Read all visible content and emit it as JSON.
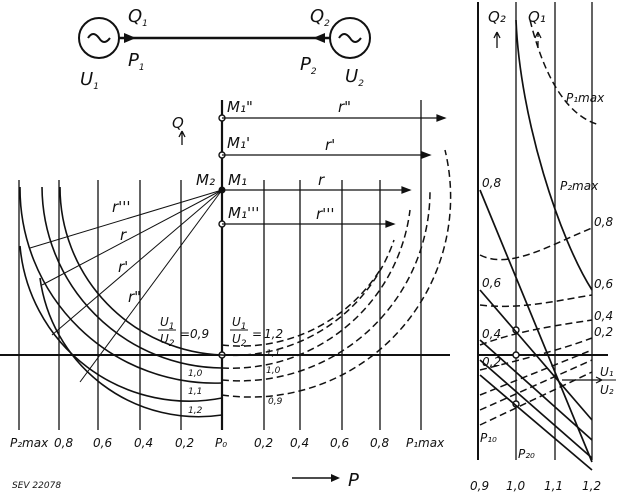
{
  "source": {
    "q1": "Q",
    "q1_sub": "1",
    "p1": "P",
    "p1_sub": "1",
    "u1": "U",
    "u1_sub": "1",
    "q2": "Q",
    "q2_sub": "2",
    "p2": "P",
    "p2_sub": "2",
    "u2": "U",
    "u2_sub": "2"
  },
  "main": {
    "q_axis": "Q",
    "p_axis": "P",
    "m_labels": [
      "M₁\"",
      "M₁'",
      "M₁",
      "M₁'''"
    ],
    "m2_label": "M₂",
    "r_labels_right": [
      "r\"",
      "r'",
      "r",
      "r'''"
    ],
    "r_labels_left": [
      "r'''",
      "r",
      "r'",
      "r\""
    ],
    "ratio_left": "0,9",
    "ratio_right": "1,2",
    "curve_labels_left": [
      "1,0",
      "1,1",
      "1,2"
    ],
    "curve_labels_right": [
      "1,1",
      "1,0",
      "0,9"
    ],
    "p_ticks_left": [
      "P₂max",
      "0,8",
      "0,6",
      "0,4",
      "0,2"
    ],
    "p0": "P₀",
    "p_ticks_right": [
      "0,2",
      "0,4",
      "0,6",
      "0,8",
      "P₁max"
    ],
    "caption": "SEV 22078"
  },
  "side": {
    "q2": "Q₂",
    "q1": "Q₁",
    "y_ticks": [
      "0,8",
      "0,6",
      "0,4",
      "0,2"
    ],
    "x_ticks": [
      "0,9",
      "1,0",
      "1,1",
      "1,2"
    ],
    "right_labels": [
      "0,8",
      "0,6",
      "0,4",
      "0,2"
    ],
    "p1max": "P₁max",
    "p2max": "P₂max",
    "p10": "P₁₀",
    "p20": "P₂₀",
    "u1u2": "U₁",
    "u2": "U₂"
  }
}
